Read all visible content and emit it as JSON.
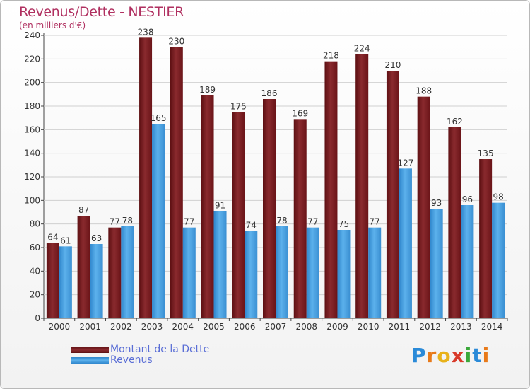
{
  "title": "Revenus/Dette - NESTIER",
  "subtitle": "(en milliers d'€)",
  "logo_text": "Proxiti",
  "colors": {
    "dette": "#7a1c20",
    "revenus": "#3d97dc",
    "title": "#b03060",
    "legend_text": "#5a6ed6"
  },
  "legend": [
    {
      "name": "Montant de la Dette",
      "color": "#7a1c20"
    },
    {
      "name": "Revenus",
      "color": "#3d97dc"
    }
  ],
  "chart_data": {
    "type": "bar",
    "title": "Revenus/Dette - NESTIER",
    "subtitle": "(en milliers d'€)",
    "categories": [
      "2000",
      "2001",
      "2002",
      "2003",
      "2004",
      "2005",
      "2006",
      "2007",
      "2008",
      "2009",
      "2010",
      "2011",
      "2012",
      "2013",
      "2014"
    ],
    "series": [
      {
        "name": "Montant de la Dette",
        "values": [
          64,
          87,
          77,
          238,
          230,
          189,
          175,
          186,
          169,
          218,
          224,
          210,
          188,
          162,
          135
        ]
      },
      {
        "name": "Revenus",
        "values": [
          61,
          63,
          78,
          165,
          77,
          91,
          74,
          78,
          77,
          75,
          77,
          127,
          93,
          96,
          98
        ]
      }
    ],
    "yticks": [
      0,
      20,
      40,
      60,
      80,
      100,
      120,
      140,
      160,
      180,
      200,
      220,
      240
    ],
    "ylim": [
      0,
      250
    ],
    "grid": true,
    "legend_position": "bottom-left"
  }
}
